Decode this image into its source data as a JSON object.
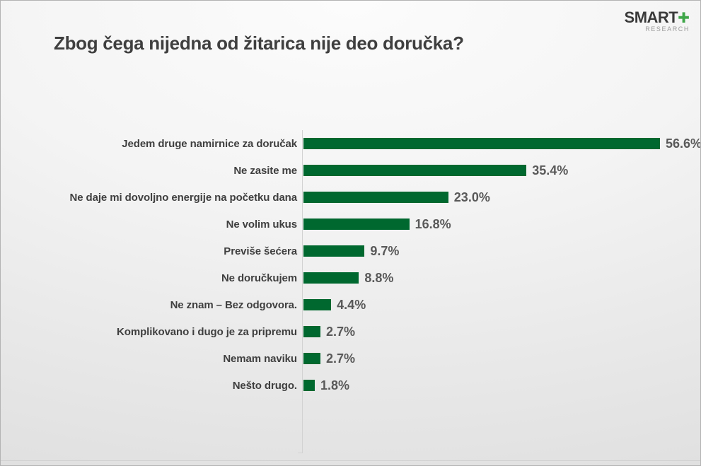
{
  "header": {
    "title": "Zbog čega nijedna od žitarica nije deo doručka?"
  },
  "logo": {
    "brand": "SMART",
    "plus_icon": "✚",
    "subtitle": "RESEARCH"
  },
  "colors": {
    "bar": "#00682f",
    "title_text": "#3f3f3f",
    "category_text": "#3f3f3f",
    "value_text": "#595959",
    "logo_green": "#3ea648",
    "axis_line": "#d2d2d2"
  },
  "chart_data": {
    "type": "bar",
    "orientation": "horizontal",
    "title": "Zbog čega nijedna od žitarica nije deo doručka?",
    "categories": [
      "Jedem druge namirnice za doručak",
      "Ne zasite me",
      "Ne daje mi dovoljno energije na početku dana",
      "Ne volim ukus",
      "Previše šećera",
      "Ne doručkujem",
      "Ne znam – Bez odgovora.",
      "Komplikovano i dugo je za pripremu",
      "Nemam naviku",
      "Nešto drugo."
    ],
    "values": [
      56.6,
      35.4,
      23.0,
      16.8,
      9.7,
      8.8,
      4.4,
      2.7,
      2.7,
      1.8
    ],
    "value_labels": [
      "56.6%",
      "35.4%",
      "23.0%",
      "16.8%",
      "9.7%",
      "8.8%",
      "4.4%",
      "2.7%",
      "2.7%",
      "1.8%"
    ],
    "xlim": [
      0,
      63
    ],
    "xlabel": "",
    "ylabel": "",
    "grid": false,
    "legend": false
  }
}
